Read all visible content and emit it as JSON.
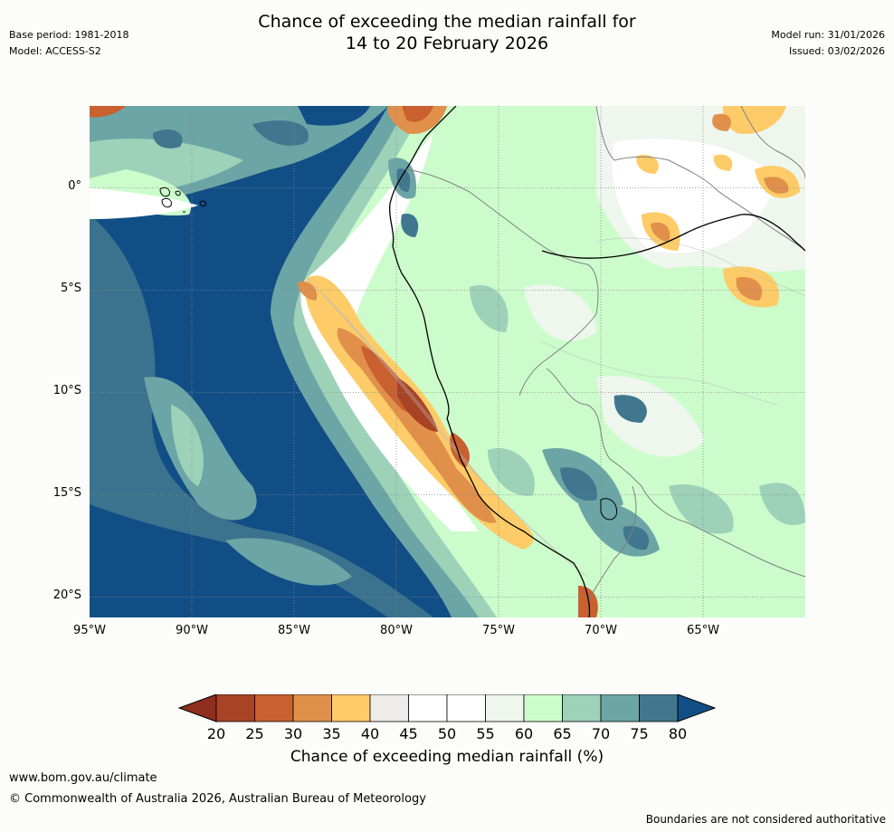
{
  "header": {
    "base_period": "Base period: 1981-2018",
    "model": "Model: ACCESS-S2",
    "title_line1": "Chance of exceeding the median rainfall for",
    "title_line2": "14 to 20 February 2026",
    "model_run": "Model run: 31/01/2026",
    "issued": "Issued: 03/02/2026"
  },
  "map": {
    "lat_labels": [
      "0°",
      "5°S",
      "10°S",
      "15°S",
      "20°S"
    ],
    "lat_values": [
      0,
      -5,
      -10,
      -15,
      -20
    ],
    "lon_labels": [
      "95°W",
      "90°W",
      "85°W",
      "80°W",
      "75°W",
      "70°W",
      "65°W"
    ],
    "lon_values": [
      -95,
      -90,
      -85,
      -80,
      -75,
      -70,
      -65
    ],
    "extent": {
      "west": -95,
      "east": -60,
      "north": 4,
      "south": -21
    },
    "ocean_color": "#124e86"
  },
  "colorbar": {
    "tick_labels": [
      "20",
      "25",
      "30",
      "35",
      "40",
      "45",
      "50",
      "55",
      "60",
      "65",
      "70",
      "75",
      "80"
    ],
    "bin_colors": [
      "#a94326",
      "#c9602f",
      "#e0904a",
      "#fdcc69",
      "#efebe8",
      "#ffffff",
      "#ffffff",
      "#eef6ee",
      "#ccfccc",
      "#9dd2b9",
      "#6ca5a5",
      "#40778f"
    ],
    "low_extend_color": "#8e2f1f",
    "high_extend_color": "#124e86",
    "title": "Chance of exceeding median rainfall (%)"
  },
  "footer": {
    "url": "www.bom.gov.au/climate",
    "copyright": "© Commonwealth of Australia 2026, Australian Bureau of Meteorology",
    "disclaimer": "Boundaries are not considered authoritative"
  }
}
